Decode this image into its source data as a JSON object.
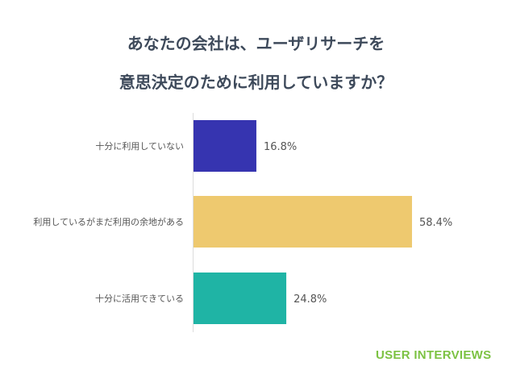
{
  "chart_data": {
    "type": "bar",
    "orientation": "horizontal",
    "title_lines": [
      "あなたの会社は、ユーザリサーチを",
      "意思決定のために利用していますか？"
    ],
    "categories": [
      "十分に利用していない",
      "利用しているがまだ利用の余地がある",
      "十分に活用できている"
    ],
    "values": [
      16.8,
      58.4,
      24.8
    ],
    "value_labels": [
      "16.8%",
      "58.4%",
      "24.8%"
    ],
    "colors": [
      "#3634b0",
      "#eec96f",
      "#1fb4a5"
    ],
    "xlabel": "",
    "ylabel": "",
    "xlim": [
      0,
      100
    ],
    "grid": false
  },
  "brand": {
    "logo_text": "USER INTERVIEWS",
    "color": "#7cc243"
  }
}
